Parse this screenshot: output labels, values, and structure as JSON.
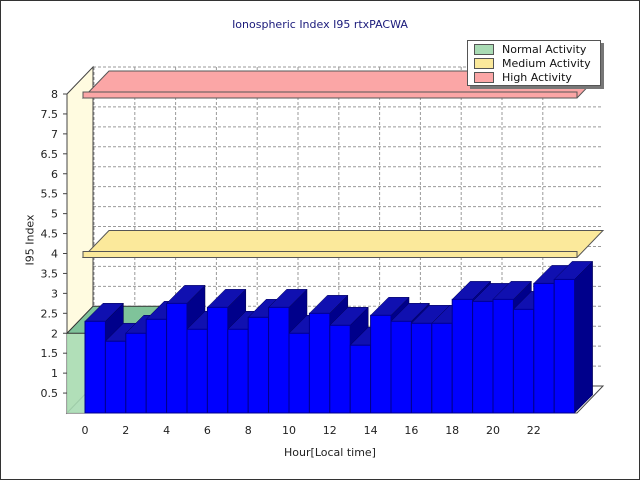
{
  "chart_data": {
    "type": "bar",
    "title": "Ionospheric Index I95 rtxPACWA",
    "xlabel": "Hour[Local time]",
    "ylabel": "I95 Index",
    "ylim": [
      0,
      8
    ],
    "y_ticks": [
      "0.5",
      "1",
      "1.5",
      "2",
      "2.5",
      "3",
      "3.5",
      "4",
      "4.5",
      "5",
      "5.5",
      "6",
      "6.5",
      "7",
      "7.5",
      "8"
    ],
    "x_ticks": [
      "0",
      "2",
      "4",
      "6",
      "8",
      "10",
      "12",
      "14",
      "16",
      "18",
      "20",
      "22"
    ],
    "categories": [
      0,
      1,
      2,
      3,
      4,
      5,
      6,
      7,
      8,
      9,
      10,
      11,
      12,
      13,
      14,
      15,
      16,
      17,
      18,
      19,
      20,
      21,
      22,
      23
    ],
    "series": [
      {
        "values": [
          2.3,
          1.8,
          2.0,
          2.35,
          2.75,
          2.1,
          2.65,
          2.1,
          2.4,
          2.65,
          2.0,
          2.5,
          2.2,
          1.7,
          2.45,
          2.3,
          2.25,
          2.25,
          2.85,
          2.8,
          2.85,
          2.6,
          3.25,
          3.35
        ],
        "color": "#0000ff"
      }
    ],
    "bands": [
      {
        "name": "Normal Activity",
        "from": 0,
        "to": 2,
        "color": "#a9dbb4"
      },
      {
        "name": "Medium Activity",
        "from": 3.9,
        "to": 4.1,
        "color": "#fbe99b"
      },
      {
        "name": "High Activity",
        "from": 7.9,
        "to": 8.1,
        "color": "#fba6a6"
      }
    ],
    "grid": true,
    "legend_position": "top-right"
  }
}
